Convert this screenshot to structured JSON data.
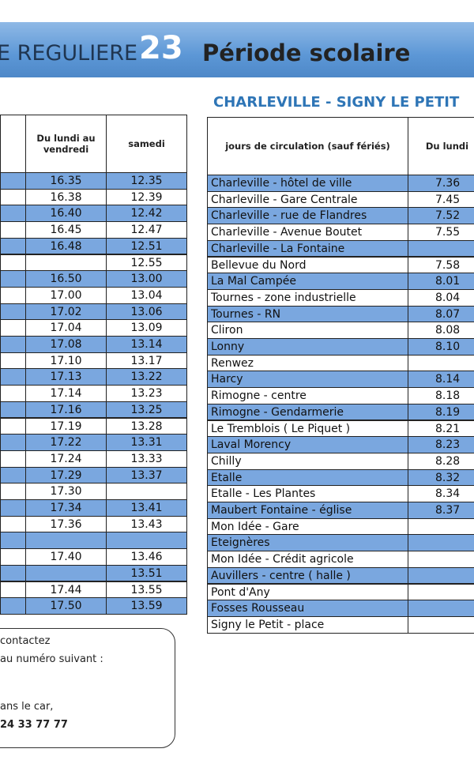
{
  "header": {
    "line_text": "E REGULIERE",
    "line_number": "23",
    "period": "Période scolaire"
  },
  "left_table": {
    "headers": [
      "Du lundi au vendredi",
      "samedi"
    ],
    "rows": [
      [
        "16.35",
        "12.35"
      ],
      [
        "16.38",
        "12.39"
      ],
      [
        "16.40",
        "12.42"
      ],
      [
        "16.45",
        "12.47"
      ],
      [
        "16.48",
        "12.51"
      ],
      [
        null,
        "12.55"
      ],
      [
        "16.50",
        "13.00"
      ],
      [
        "17.00",
        "13.04"
      ],
      [
        "17.02",
        "13.06"
      ],
      [
        "17.04",
        "13.09"
      ],
      [
        "17.08",
        "13.14"
      ],
      [
        "17.10",
        "13.17"
      ],
      [
        "17.13",
        "13.22"
      ],
      [
        "17.14",
        "13.23"
      ],
      [
        "17.16",
        "13.25"
      ],
      [
        "17.19",
        "13.28"
      ],
      [
        "17.22",
        "13.31"
      ],
      [
        "17.24",
        "13.33"
      ],
      [
        "17.29",
        "13.37"
      ],
      [
        "17.30",
        null
      ],
      [
        "17.34",
        "13.41"
      ],
      [
        "17.36",
        "13.43"
      ],
      [
        null,
        null
      ],
      [
        "17.40",
        "13.46"
      ],
      [
        null,
        "13.51"
      ],
      [
        "17.44",
        "13.55"
      ],
      [
        "17.50",
        "13.59"
      ]
    ]
  },
  "right_table": {
    "title": "CHARLEVILLE - SIGNY LE PETIT",
    "headers": [
      "jours de circulation (sauf fériés)",
      "Du lundi"
    ],
    "rows": [
      [
        "Charleville - hôtel de ville",
        "7.36"
      ],
      [
        "Charleville - Gare Centrale",
        "7.45"
      ],
      [
        "Charleville - rue de Flandres",
        "7.52"
      ],
      [
        "Charleville - Avenue Boutet",
        "7.55"
      ],
      [
        "Charleville - La Fontaine",
        null
      ],
      [
        "Bellevue du Nord",
        "7.58"
      ],
      [
        "La Mal Campée",
        "8.01"
      ],
      [
        "Tournes - zone industrielle",
        "8.04"
      ],
      [
        "Tournes - RN",
        "8.07"
      ],
      [
        "Cliron",
        "8.08"
      ],
      [
        "Lonny",
        "8.10"
      ],
      [
        "Renwez",
        null
      ],
      [
        "Harcy",
        "8.14"
      ],
      [
        "Rimogne - centre",
        "8.18"
      ],
      [
        "Rimogne - Gendarmerie",
        "8.19"
      ],
      [
        "Le Tremblois ( Le Piquet )",
        "8.21"
      ],
      [
        "Laval Morency",
        "8.23"
      ],
      [
        "Chilly",
        "8.28"
      ],
      [
        "Etalle",
        "8.32"
      ],
      [
        "Etalle - Les Plantes",
        "8.34"
      ],
      [
        "Maubert Fontaine - église",
        "8.37"
      ],
      [
        "Mon Idée - Gare",
        null
      ],
      [
        "Eteignères",
        null
      ],
      [
        "Mon Idée - Crédit agricole",
        null
      ],
      [
        "Auvillers - centre ( halle )",
        null
      ],
      [
        "Pont d'Any",
        null
      ],
      [
        "Fosses Rousseau",
        null
      ],
      [
        "Signy le Petit - place",
        null
      ]
    ]
  },
  "note": {
    "lines": [
      "contactez",
      "au numéro suivant :",
      "ans le car,",
      "24 33 77 77"
    ]
  }
}
